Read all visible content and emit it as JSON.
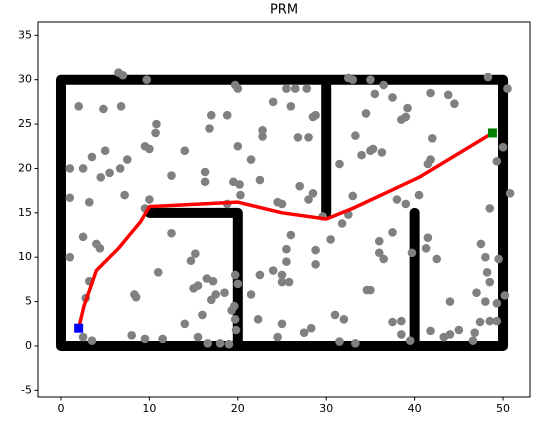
{
  "chart_data": {
    "type": "scatter",
    "title": "PRM",
    "xlim": [
      -2.6,
      53.05
    ],
    "ylim": [
      -5.75,
      36.5
    ],
    "xticks": [
      0,
      10,
      20,
      30,
      40,
      50
    ],
    "yticks": [
      -5,
      0,
      5,
      10,
      15,
      20,
      25,
      30,
      35
    ],
    "series": [
      {
        "type": "line",
        "color": "#000000",
        "width": 10,
        "x": [
          0,
          50,
          50,
          0,
          0,
          null,
          30,
          30,
          null,
          10,
          20,
          null,
          20,
          20,
          null,
          40,
          40
        ],
        "y": [
          0,
          0,
          30,
          30,
          0,
          null,
          15,
          30,
          null,
          15,
          15,
          null,
          15,
          0,
          null,
          15,
          0
        ]
      },
      {
        "type": "scatter",
        "color": "#808080",
        "x": [
          6.5,
          7,
          6.8,
          4.8,
          9.7,
          2,
          1,
          1,
          2.5,
          3.5,
          4.5,
          5.5,
          5,
          6.7,
          7.5,
          7.2,
          3.2,
          9.5,
          10,
          10.7,
          10.8,
          9.5,
          10,
          12.5,
          14,
          16.3,
          16.3,
          16.8,
          17,
          18.8,
          20,
          19.7,
          20,
          18.8,
          19.5,
          20.2,
          20.3,
          21.5,
          22.8,
          22.8,
          22.5,
          24,
          25.5,
          26,
          26.5,
          27.8,
          26.8,
          28,
          28.5,
          28.8,
          27,
          28.5,
          24.5,
          25,
          28,
          29.6,
          26,
          25.5,
          25.5,
          28.8,
          28.8,
          30.5,
          31.8,
          32.5,
          33,
          31.5,
          33.3,
          34,
          35,
          35.3,
          36.3,
          32.5,
          33,
          35,
          34.5,
          35.5,
          36.5,
          38.5,
          39,
          39.2,
          37.5,
          38,
          39,
          40.5,
          42,
          41.8,
          41.5,
          41.8,
          43.8,
          44.5,
          48.3,
          49.3,
          50,
          50.5,
          50.8,
          48.5,
          47.5,
          48,
          48.2,
          48.5,
          49.5,
          47,
          44,
          48,
          49.3,
          50.2,
          49.3,
          48.5,
          47.4,
          46.8,
          46.6,
          45,
          44,
          43.3,
          41.5,
          41.3,
          42.5,
          39.7,
          37.5,
          36,
          36,
          36.5,
          34.6,
          35,
          37.5,
          38.5,
          38.5,
          39.5,
          41.8,
          31,
          32,
          31.5,
          33.3,
          27.5,
          28.3,
          25,
          24.5,
          22.3,
          21.5,
          22.5,
          24,
          25,
          25,
          25.8,
          19,
          18,
          19.8,
          19.7,
          19.3,
          19.6,
          19.7,
          20,
          18.5,
          17,
          17.5,
          16.5,
          17.2,
          15.5,
          15,
          14.7,
          15.2,
          12.5,
          11,
          8.3,
          8.5,
          14,
          16,
          15.5,
          16.6,
          11.5,
          9.5,
          8,
          3.5,
          2.5,
          1,
          2.5,
          4,
          4.4,
          3.2,
          2.8
        ],
        "y": [
          30.8,
          30.5,
          27,
          26.7,
          30,
          27,
          20,
          16.7,
          20,
          21.3,
          19,
          19.5,
          22,
          20,
          21,
          17,
          16.2,
          22.5,
          22.2,
          24,
          25,
          15.5,
          16.5,
          19.2,
          22,
          19.6,
          18.5,
          24.5,
          26,
          26,
          29,
          29.4,
          22.5,
          16,
          18.5,
          18.2,
          17,
          21,
          23.6,
          24.3,
          18.7,
          27.5,
          29,
          27,
          29,
          29,
          23.5,
          23.5,
          25.8,
          26,
          18,
          17.2,
          16.2,
          16,
          16.5,
          14.6,
          12.5,
          10.9,
          9.5,
          10.8,
          9.2,
          12,
          13.8,
          14.8,
          16.9,
          20.5,
          23.7,
          21.5,
          22,
          22.2,
          21.8,
          30.2,
          30,
          30,
          26.2,
          28.4,
          29.4,
          25.5,
          25.8,
          26.8,
          28,
          16.5,
          16,
          17,
          23.4,
          21,
          20.5,
          28.5,
          28.3,
          27.3,
          30.3,
          20.8,
          22.4,
          29,
          17.2,
          15.5,
          11.5,
          10,
          8.3,
          7.2,
          9.8,
          6,
          5,
          5,
          4.8,
          5.7,
          2.8,
          2.8,
          2.7,
          1.5,
          0.6,
          1.8,
          1.3,
          1,
          12.2,
          11,
          9.8,
          10.5,
          12.8,
          11.8,
          10.5,
          9.8,
          6.3,
          6.3,
          2.7,
          2.8,
          1.3,
          0.6,
          1.7,
          3.5,
          3,
          0.5,
          0.3,
          1.5,
          2,
          2.5,
          1,
          3,
          5.8,
          8,
          8.5,
          8,
          7.2,
          7.2,
          0.2,
          0.3,
          1.8,
          3,
          4,
          4.5,
          8,
          7,
          6,
          5.2,
          5.8,
          7.6,
          7.3,
          6.8,
          6.5,
          9.6,
          10.4,
          12.7,
          8.3,
          5.8,
          5.5,
          2.5,
          3.5,
          1,
          0.3,
          0.8,
          0.8,
          1.2,
          0.6,
          1,
          10,
          12.3,
          11.5,
          11,
          7.3,
          5.4
        ]
      },
      {
        "type": "line",
        "color": "#ff0000",
        "width": 3.5,
        "x": [
          2,
          2.6,
          4,
          6.5,
          9,
          10,
          20,
          25,
          30,
          33,
          40.5,
          48.8
        ],
        "y": [
          2,
          4.5,
          8.5,
          11,
          14,
          15.7,
          16.2,
          15,
          14.3,
          15.5,
          19,
          24
        ]
      },
      {
        "type": "square",
        "color": "#0000ff",
        "x": [
          2
        ],
        "y": [
          2
        ]
      },
      {
        "type": "square",
        "color": "#008000",
        "x": [
          48.8
        ],
        "y": [
          24
        ]
      }
    ]
  }
}
